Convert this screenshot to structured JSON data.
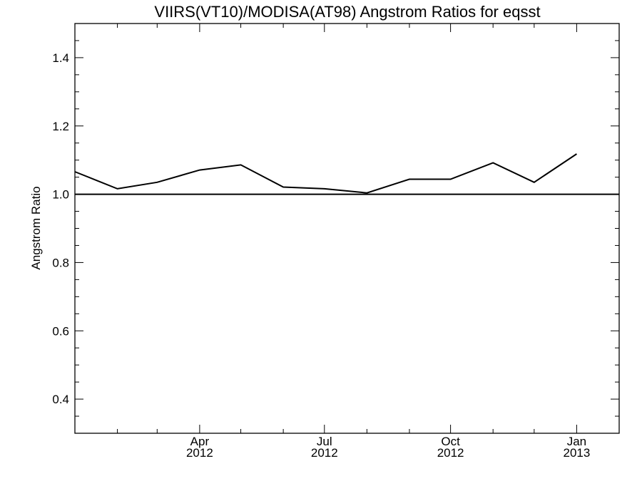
{
  "chart_data": {
    "type": "line",
    "title": "VIIRS(VT10)/MODISA(AT98)  Angstrom Ratios for eqsst",
    "xlabel": "",
    "ylabel": "Angstrom Ratio",
    "xlim": [
      "2012-01-01",
      "2013-02-01"
    ],
    "ylim": [
      0.3,
      1.5
    ],
    "yticks": [
      0.4,
      0.6,
      0.8,
      1.0,
      1.2,
      1.4
    ],
    "ytick_labels": [
      "0.4",
      "0.6",
      "0.8",
      "1.0",
      "1.2",
      "1.4"
    ],
    "xticks": [
      {
        "date": "2012-04-01",
        "month": "Apr",
        "year": "2012"
      },
      {
        "date": "2012-07-01",
        "month": "Jul",
        "year": "2012"
      },
      {
        "date": "2012-10-01",
        "month": "Oct",
        "year": "2012"
      },
      {
        "date": "2013-01-01",
        "month": "Jan",
        "year": "2013"
      }
    ],
    "x_minor_ticks": [
      "2012-02-01",
      "2012-03-01",
      "2012-05-01",
      "2012-06-01",
      "2012-08-01",
      "2012-09-01",
      "2012-11-01",
      "2012-12-01",
      "2013-02-01"
    ],
    "reference_line": 1.0,
    "grid": false,
    "series": [
      {
        "points": [
          {
            "x": "2012-01-01",
            "y": 1.066
          },
          {
            "x": "2012-02-01",
            "y": 1.016
          },
          {
            "x": "2012-03-01",
            "y": 1.035
          },
          {
            "x": "2012-04-01",
            "y": 1.071
          },
          {
            "x": "2012-05-01",
            "y": 1.086
          },
          {
            "x": "2012-06-01",
            "y": 1.021
          },
          {
            "x": "2012-07-01",
            "y": 1.016
          },
          {
            "x": "2012-08-01",
            "y": 1.004
          },
          {
            "x": "2012-09-01",
            "y": 1.044
          },
          {
            "x": "2012-10-01",
            "y": 1.044
          },
          {
            "x": "2012-11-01",
            "y": 1.092
          },
          {
            "x": "2012-12-01",
            "y": 1.035
          },
          {
            "x": "2013-01-01",
            "y": 1.118
          }
        ]
      }
    ]
  }
}
